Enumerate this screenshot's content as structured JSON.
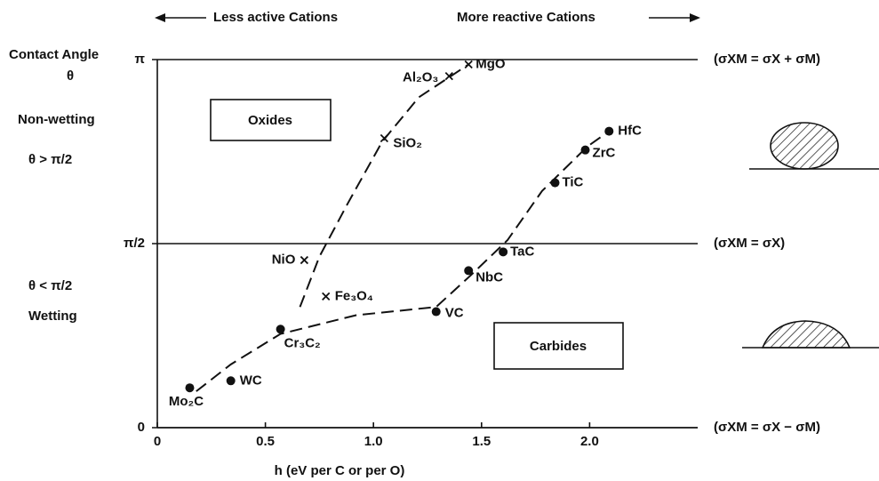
{
  "chart_data": {
    "type": "scatter",
    "top_annotations": [
      "Less active Cations",
      "More reactive Cations"
    ],
    "y_label": "Contact Angle",
    "y_symbol": "θ",
    "x_label": "h (eV per C or per O)",
    "regions": [
      {
        "label": "Non-wetting",
        "condition": "θ > π/2"
      },
      {
        "label": "Wetting",
        "condition": "θ < π/2"
      }
    ],
    "equations": [
      "(σXM = σX + σM)",
      "(σXM = σX)",
      "(σXM = σX − σM)"
    ],
    "xlim": [
      0,
      2.5
    ],
    "ylim": [
      0,
      3.1416
    ],
    "xticks": [
      0,
      0.5,
      {
        "value": 1,
        "label": "1.0"
      },
      1.5,
      {
        "value": 2,
        "label": "2.0"
      }
    ],
    "yticks": [
      0,
      {
        "value": 1.5708,
        "label": "π/2"
      },
      {
        "value": 3.1416,
        "label": "π"
      }
    ],
    "series": [
      {
        "name": "Oxides",
        "marker": "x",
        "color": "#111111",
        "labels": [
          "NiO",
          "Fe₃O₄",
          "SiO₂",
          "Al₂O₃",
          "MgO"
        ],
        "x": [
          0.68,
          0.78,
          1.05,
          1.35,
          1.44
        ],
        "values": [
          1.43,
          1.12,
          2.47,
          3.0,
          3.1
        ]
      },
      {
        "name": "Carbides",
        "marker": "dot",
        "color": "#111111",
        "labels": [
          "Mo₂C",
          "WC",
          "Cr₃C₂",
          "VC",
          "NbC",
          "TaC",
          "TiC",
          "ZrC",
          "HfC"
        ],
        "x": [
          0.15,
          0.34,
          0.57,
          1.29,
          1.44,
          1.6,
          1.84,
          1.98,
          2.09
        ],
        "values": [
          0.34,
          0.4,
          0.84,
          0.99,
          1.34,
          1.5,
          2.09,
          2.37,
          2.53
        ]
      }
    ],
    "curves": [
      {
        "x": [
          0.66,
          0.75,
          0.88,
          1.04,
          1.21,
          1.44
        ],
        "values": [
          1.03,
          1.46,
          1.91,
          2.44,
          2.82,
          3.1
        ]
      },
      {
        "x": [
          0.18,
          0.34,
          0.57,
          0.92,
          1.29,
          1.45,
          1.62,
          1.78,
          1.99,
          2.09
        ],
        "values": [
          0.31,
          0.54,
          0.8,
          0.96,
          1.03,
          1.3,
          1.6,
          2.02,
          2.4,
          2.53
        ]
      }
    ]
  }
}
